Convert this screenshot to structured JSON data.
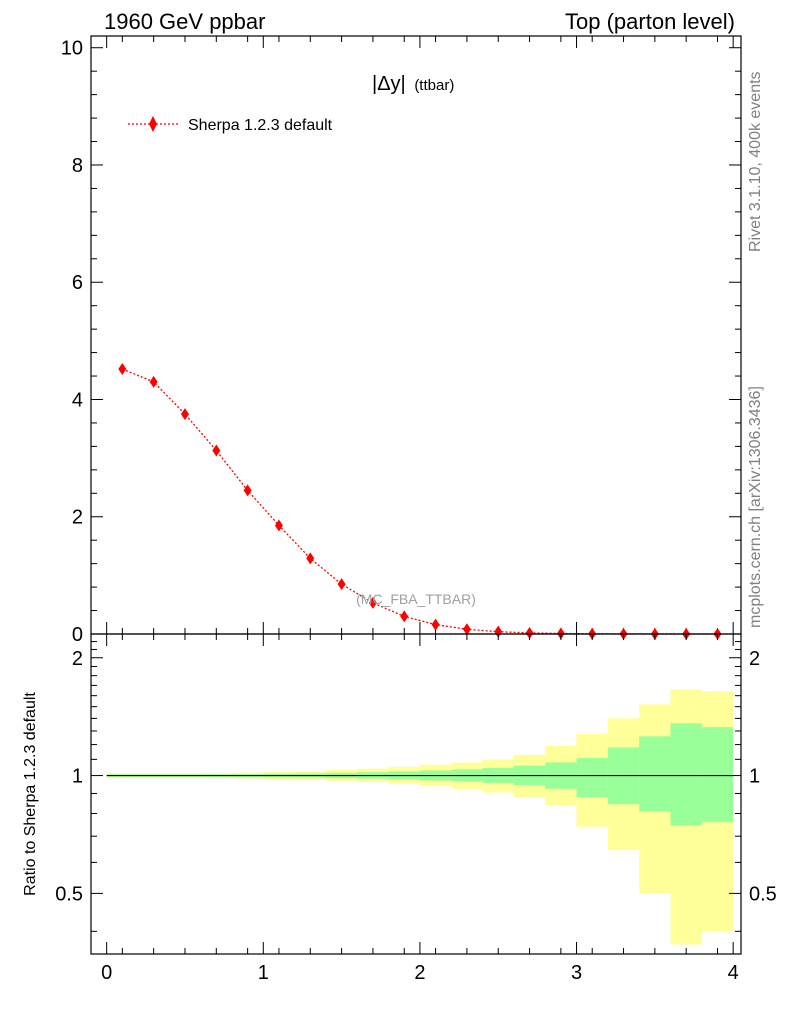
{
  "header": {
    "left": "1960 GeV ppbar",
    "right": "Top (parton level)"
  },
  "side_texts": {
    "rivet": "Rivet 3.1.10,  400k events",
    "mcplots": "mcplots.cern.ch [arXiv:1306.3436]"
  },
  "chart_data": [
    {
      "type": "line",
      "title": "|Δy| (ttbar)",
      "title_main": "|Δy|",
      "title_sub": "(ttbar)",
      "watermark": "(MC_FBA_TTBAR)",
      "xlim": [
        -0.1,
        4.05
      ],
      "ylim": [
        0,
        10.2
      ],
      "yticks": [
        0,
        2,
        4,
        6,
        8,
        10
      ],
      "ytick_labels": [
        "0",
        "2",
        "4",
        "6",
        "8",
        "10"
      ],
      "legend": {
        "position": "top-left",
        "label": "Sherpa 1.2.3 default"
      },
      "colors": {
        "series": "#ff0000"
      },
      "series": [
        {
          "name": "Sherpa 1.2.3 default",
          "x": [
            0.1,
            0.3,
            0.5,
            0.7,
            0.9,
            1.1,
            1.3,
            1.5,
            1.7,
            1.9,
            2.1,
            2.3,
            2.5,
            2.7,
            2.9,
            3.1,
            3.3,
            3.5,
            3.7,
            3.9
          ],
          "y": [
            4.52,
            4.3,
            3.75,
            3.13,
            2.45,
            1.85,
            1.29,
            0.85,
            0.53,
            0.3,
            0.16,
            0.08,
            0.04,
            0.018,
            0.008,
            0.004,
            0.002,
            0.001,
            0.0005,
            0.0003
          ]
        }
      ]
    },
    {
      "type": "area",
      "ylabel": "Ratio to Sherpa 1.2.3 default",
      "xlim": [
        -0.1,
        4.05
      ],
      "ylim": [
        0.35,
        2.3
      ],
      "yticks": [
        0.5,
        1,
        2
      ],
      "ytick_labels": [
        "0.5",
        "1",
        "2"
      ],
      "xticks": [
        0,
        1,
        2,
        3,
        4
      ],
      "xtick_labels": [
        "0",
        "1",
        "2",
        "3",
        "4"
      ],
      "reference_line": 1,
      "colors": {
        "stat_band": "#99ff99",
        "total_band": "#ffff99"
      },
      "bins": {
        "edges": [
          0,
          0.2,
          0.4,
          0.6,
          0.8,
          1.0,
          1.2,
          1.4,
          1.6,
          1.8,
          2.0,
          2.2,
          2.4,
          2.6,
          2.8,
          3.0,
          3.2,
          3.4,
          3.6,
          3.8,
          4.0
        ],
        "yellow_low": [
          0.985,
          0.985,
          0.985,
          0.985,
          0.983,
          0.98,
          0.976,
          0.97,
          0.963,
          0.953,
          0.94,
          0.925,
          0.905,
          0.88,
          0.84,
          0.74,
          0.645,
          0.5,
          0.37,
          0.4
        ],
        "yellow_high": [
          1.015,
          1.015,
          1.015,
          1.016,
          1.018,
          1.022,
          1.026,
          1.033,
          1.042,
          1.053,
          1.066,
          1.08,
          1.1,
          1.13,
          1.19,
          1.28,
          1.4,
          1.52,
          1.66,
          1.64
        ],
        "green_low": [
          0.993,
          0.993,
          0.993,
          0.993,
          0.992,
          0.99,
          0.988,
          0.985,
          0.982,
          0.978,
          0.972,
          0.966,
          0.958,
          0.945,
          0.925,
          0.88,
          0.845,
          0.81,
          0.745,
          0.76
        ],
        "green_high": [
          1.007,
          1.007,
          1.007,
          1.008,
          1.009,
          1.011,
          1.013,
          1.016,
          1.02,
          1.025,
          1.03,
          1.037,
          1.045,
          1.06,
          1.08,
          1.11,
          1.18,
          1.26,
          1.36,
          1.33
        ]
      }
    }
  ]
}
